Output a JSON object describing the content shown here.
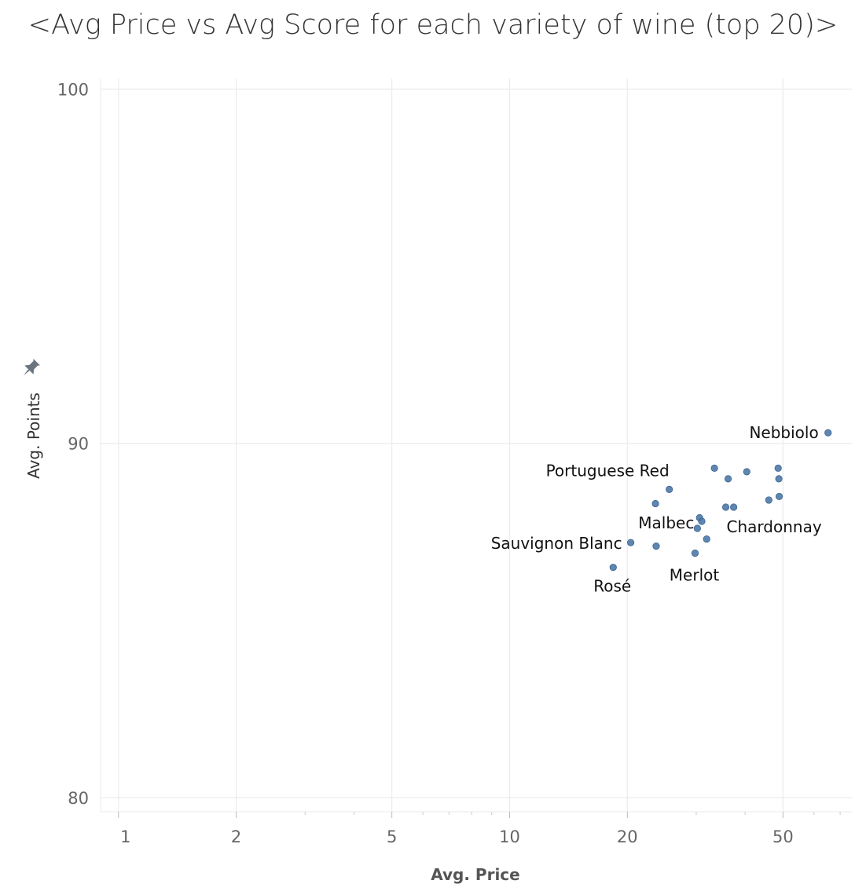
{
  "title": "<Avg Price vs Avg Score for each variety of wine (top 20)>",
  "colors": {
    "point": "#4e79a7",
    "grid": "#ebebeb",
    "axis_text": "#666666",
    "title_text": "#333333",
    "pin_icon": "#6b7580"
  },
  "chart_data": {
    "type": "scatter",
    "title": "<Avg Price vs Avg Score for each variety of wine (top 20)>",
    "xlabel": "Avg. Price",
    "ylabel": "Avg. Points",
    "xscale": "log",
    "xlim": [
      0.9,
      75
    ],
    "ylim": [
      79.6,
      100.3
    ],
    "xticks": [
      1,
      2,
      5,
      10,
      20,
      50
    ],
    "xtick_labels": [
      "1",
      "2",
      "5",
      "10",
      "20",
      "50"
    ],
    "yticks": [
      80,
      90,
      100
    ],
    "ytick_labels": [
      "80",
      "90",
      "100"
    ],
    "grid": true,
    "points": [
      {
        "x": 65.2,
        "y": 90.3,
        "label": "Nebbiolo"
      },
      {
        "x": 33.4,
        "y": 89.3,
        "label": ""
      },
      {
        "x": 36.2,
        "y": 89.0,
        "label": ""
      },
      {
        "x": 40.4,
        "y": 89.2,
        "label": ""
      },
      {
        "x": 48.6,
        "y": 89.3,
        "label": ""
      },
      {
        "x": 48.8,
        "y": 89.0,
        "label": ""
      },
      {
        "x": 25.6,
        "y": 88.7,
        "label": "Portuguese Red"
      },
      {
        "x": 23.6,
        "y": 88.3,
        "label": ""
      },
      {
        "x": 48.9,
        "y": 88.5,
        "label": ""
      },
      {
        "x": 46.0,
        "y": 88.4,
        "label": ""
      },
      {
        "x": 37.4,
        "y": 88.2,
        "label": ""
      },
      {
        "x": 35.7,
        "y": 88.2,
        "label": "Chardonnay"
      },
      {
        "x": 30.6,
        "y": 87.9,
        "label": ""
      },
      {
        "x": 31.0,
        "y": 87.8,
        "label": ""
      },
      {
        "x": 30.2,
        "y": 87.6,
        "label": "Malbec"
      },
      {
        "x": 31.9,
        "y": 87.3,
        "label": ""
      },
      {
        "x": 20.4,
        "y": 87.2,
        "label": "Sauvignon Blanc"
      },
      {
        "x": 23.7,
        "y": 87.1,
        "label": ""
      },
      {
        "x": 29.8,
        "y": 86.9,
        "label": "Merlot"
      },
      {
        "x": 18.4,
        "y": 86.5,
        "label": "Rosé"
      }
    ]
  }
}
